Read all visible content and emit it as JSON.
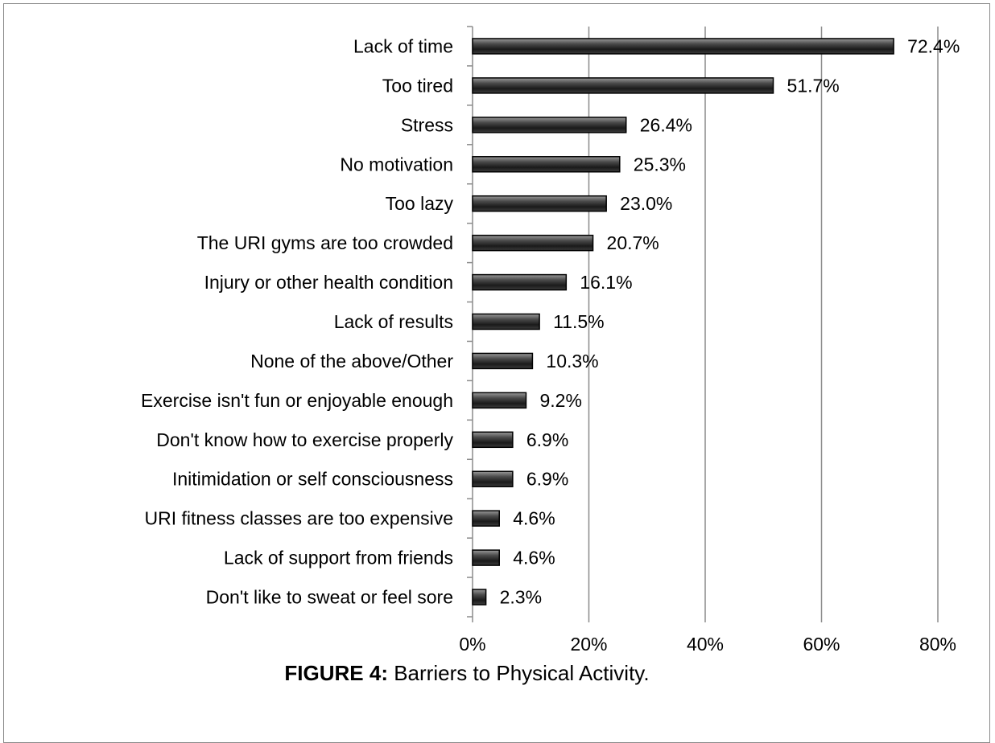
{
  "chart_data": {
    "type": "bar",
    "orientation": "horizontal",
    "categories": [
      "Lack of time",
      "Too tired",
      "Stress",
      "No motivation",
      "Too lazy",
      "The URI gyms are too crowded",
      "Injury or other health condition",
      "Lack of results",
      "None of the above/Other",
      "Exercise isn't fun or enjoyable enough",
      "Don't know how to exercise properly",
      "Initimidation or self consciousness",
      "URI fitness classes are too expensive",
      "Lack of support from friends",
      "Don't like to sweat or feel sore"
    ],
    "values": [
      72.4,
      51.7,
      26.4,
      25.3,
      23.0,
      20.7,
      16.1,
      11.5,
      10.3,
      9.2,
      6.9,
      6.9,
      4.6,
      4.6,
      2.3
    ],
    "value_labels": [
      "72.4%",
      "51.7%",
      "26.4%",
      "25.3%",
      "23.0%",
      "20.7%",
      "16.1%",
      "11.5%",
      "10.3%",
      "9.2%",
      "6.9%",
      "6.9%",
      "4.6%",
      "4.6%",
      "2.3%"
    ],
    "xlim": [
      0,
      80
    ],
    "x_ticks": [
      0,
      20,
      40,
      60,
      80
    ],
    "x_tick_labels": [
      "0%",
      "20%",
      "40%",
      "60%",
      "80%"
    ],
    "grid": "vertical",
    "bar_color": "#3a3a3a",
    "legend": "none"
  },
  "caption": {
    "label": "FIGURE 4:",
    "text": " Barriers to Physical Activity."
  }
}
